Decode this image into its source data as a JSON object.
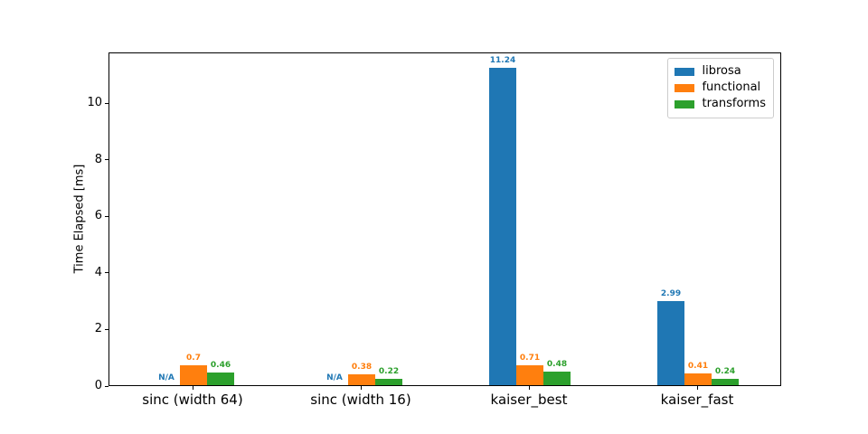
{
  "chart_data": {
    "type": "bar",
    "title": "",
    "xlabel": "",
    "ylabel": "Time Elapsed [ms]",
    "categories": [
      "sinc (width 64)",
      "sinc (width 16)",
      "kaiser_best",
      "kaiser_fast"
    ],
    "series": [
      {
        "name": "librosa",
        "color": "#1f77b4",
        "values": [
          null,
          null,
          11.24,
          2.99
        ],
        "value_labels": [
          "N/A",
          "N/A",
          "11.24",
          "2.99"
        ]
      },
      {
        "name": "functional",
        "color": "#ff7f0e",
        "values": [
          0.7,
          0.38,
          0.71,
          0.41
        ],
        "value_labels": [
          "0.7",
          "0.38",
          "0.71",
          "0.41"
        ]
      },
      {
        "name": "transforms",
        "color": "#2ca02c",
        "values": [
          0.46,
          0.22,
          0.48,
          0.24
        ],
        "value_labels": [
          "0.46",
          "0.22",
          "0.48",
          "0.24"
        ]
      }
    ],
    "missing_value_label": "N/A",
    "yticks": [
      0,
      2,
      4,
      6,
      8,
      10
    ],
    "ylim": [
      0,
      11.8
    ],
    "grid": false,
    "legend": {
      "position": "upper right",
      "entries": [
        "librosa",
        "functional",
        "transforms"
      ]
    },
    "axis_color": "#000000",
    "background_color": "#ffffff"
  }
}
